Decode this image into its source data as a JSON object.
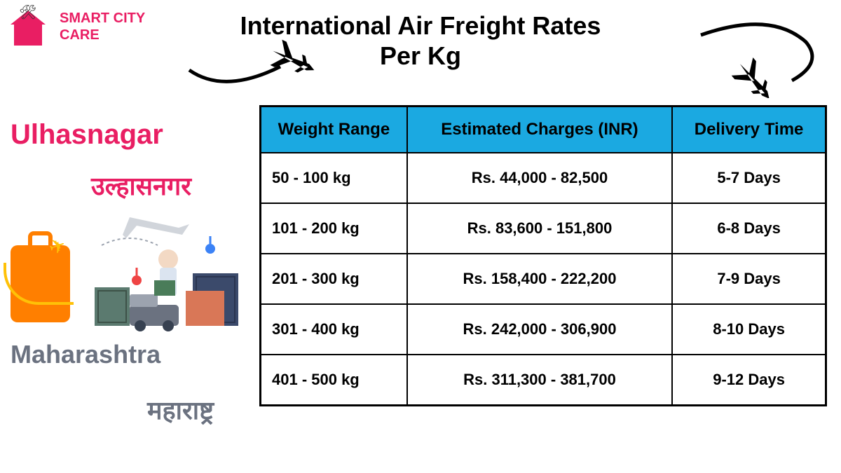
{
  "logo": {
    "text": "SMART CITY\nCARE"
  },
  "title": "International Air Freight Rates\nPer Kg",
  "location": {
    "city_en": "Ulhasnagar",
    "city_hi": "उल्हासनगर",
    "state_en": "Maharashtra",
    "state_hi": "महाराष्ट्र"
  },
  "table": {
    "header_bg": "#1ba9e1",
    "border_color": "#000000",
    "columns": [
      "Weight Range",
      "Estimated Charges (INR)",
      "Delivery Time"
    ],
    "rows": [
      [
        "50 - 100 kg",
        "Rs. 44,000 - 82,500",
        "5-7 Days"
      ],
      [
        "101 - 200 kg",
        "Rs. 83,600 - 151,800",
        "6-8 Days"
      ],
      [
        "201 - 300 kg",
        "Rs. 158,400 - 222,200",
        "7-9 Days"
      ],
      [
        "301 - 400 kg",
        "Rs. 242,000 - 306,900",
        "8-10 Days"
      ],
      [
        "401 - 500 kg",
        "Rs. 311,300 - 381,700",
        "9-12 Days"
      ]
    ]
  },
  "colors": {
    "brand": "#e91e63",
    "accent_orange": "#ff7f00",
    "accent_yellow": "#ffc107",
    "state_text": "#6b7280",
    "table_header": "#1ba9e1"
  },
  "fonts": {
    "title_size": 36,
    "city_size": 40,
    "state_size": 36,
    "th_size": 24,
    "td_size": 22
  }
}
